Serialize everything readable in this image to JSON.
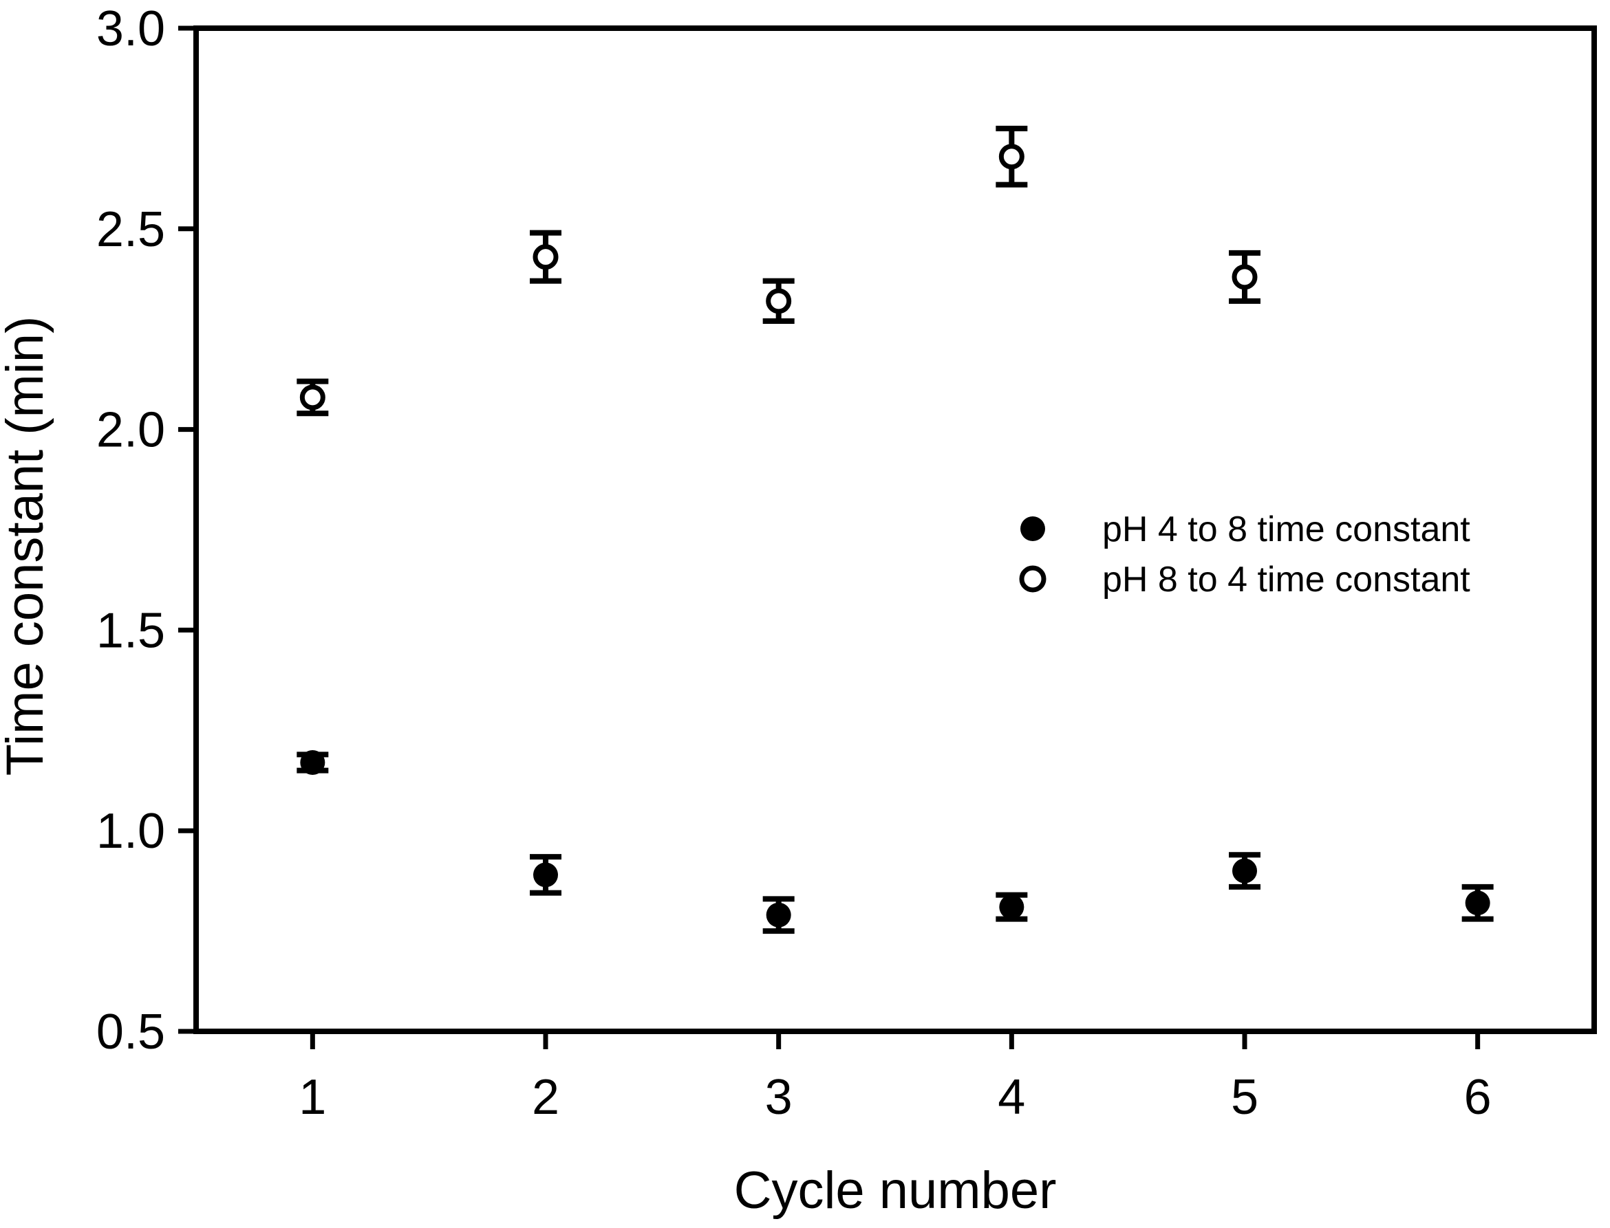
{
  "chart_data": {
    "type": "scatter",
    "title": "",
    "xlabel": "Cycle number",
    "ylabel": "Time constant (min)",
    "xlim": [
      0.5,
      6.5
    ],
    "ylim": [
      0.5,
      3.0
    ],
    "x_ticks": [
      1,
      2,
      3,
      4,
      5,
      6
    ],
    "x_tick_labels": [
      "1",
      "2",
      "3",
      "4",
      "5",
      "6"
    ],
    "y_ticks": [
      3.0,
      2.5,
      2.0,
      1.5,
      1.0,
      0.5
    ],
    "y_tick_labels": [
      "3.0",
      "2.5",
      "2.0",
      "1.5",
      "1.0",
      "0.5"
    ],
    "grid": false,
    "frame": true,
    "legend_position": "center-right-inside",
    "marker_color": "#000000",
    "series": [
      {
        "name": "pH 4 to 8 time constant",
        "marker": "filled-circle",
        "color": "#000000",
        "x": [
          1,
          2,
          3,
          4,
          5,
          6
        ],
        "y": [
          1.17,
          0.89,
          0.79,
          0.81,
          0.9,
          0.82
        ],
        "y_err": [
          0.02,
          0.045,
          0.04,
          0.03,
          0.04,
          0.04
        ]
      },
      {
        "name": "pH 8 to 4 time constant",
        "marker": "open-circle",
        "color": "#000000",
        "x": [
          1,
          2,
          3,
          4,
          5
        ],
        "y": [
          2.08,
          2.43,
          2.32,
          2.68,
          2.38
        ],
        "y_err": [
          0.04,
          0.06,
          0.05,
          0.07,
          0.06
        ]
      }
    ]
  }
}
